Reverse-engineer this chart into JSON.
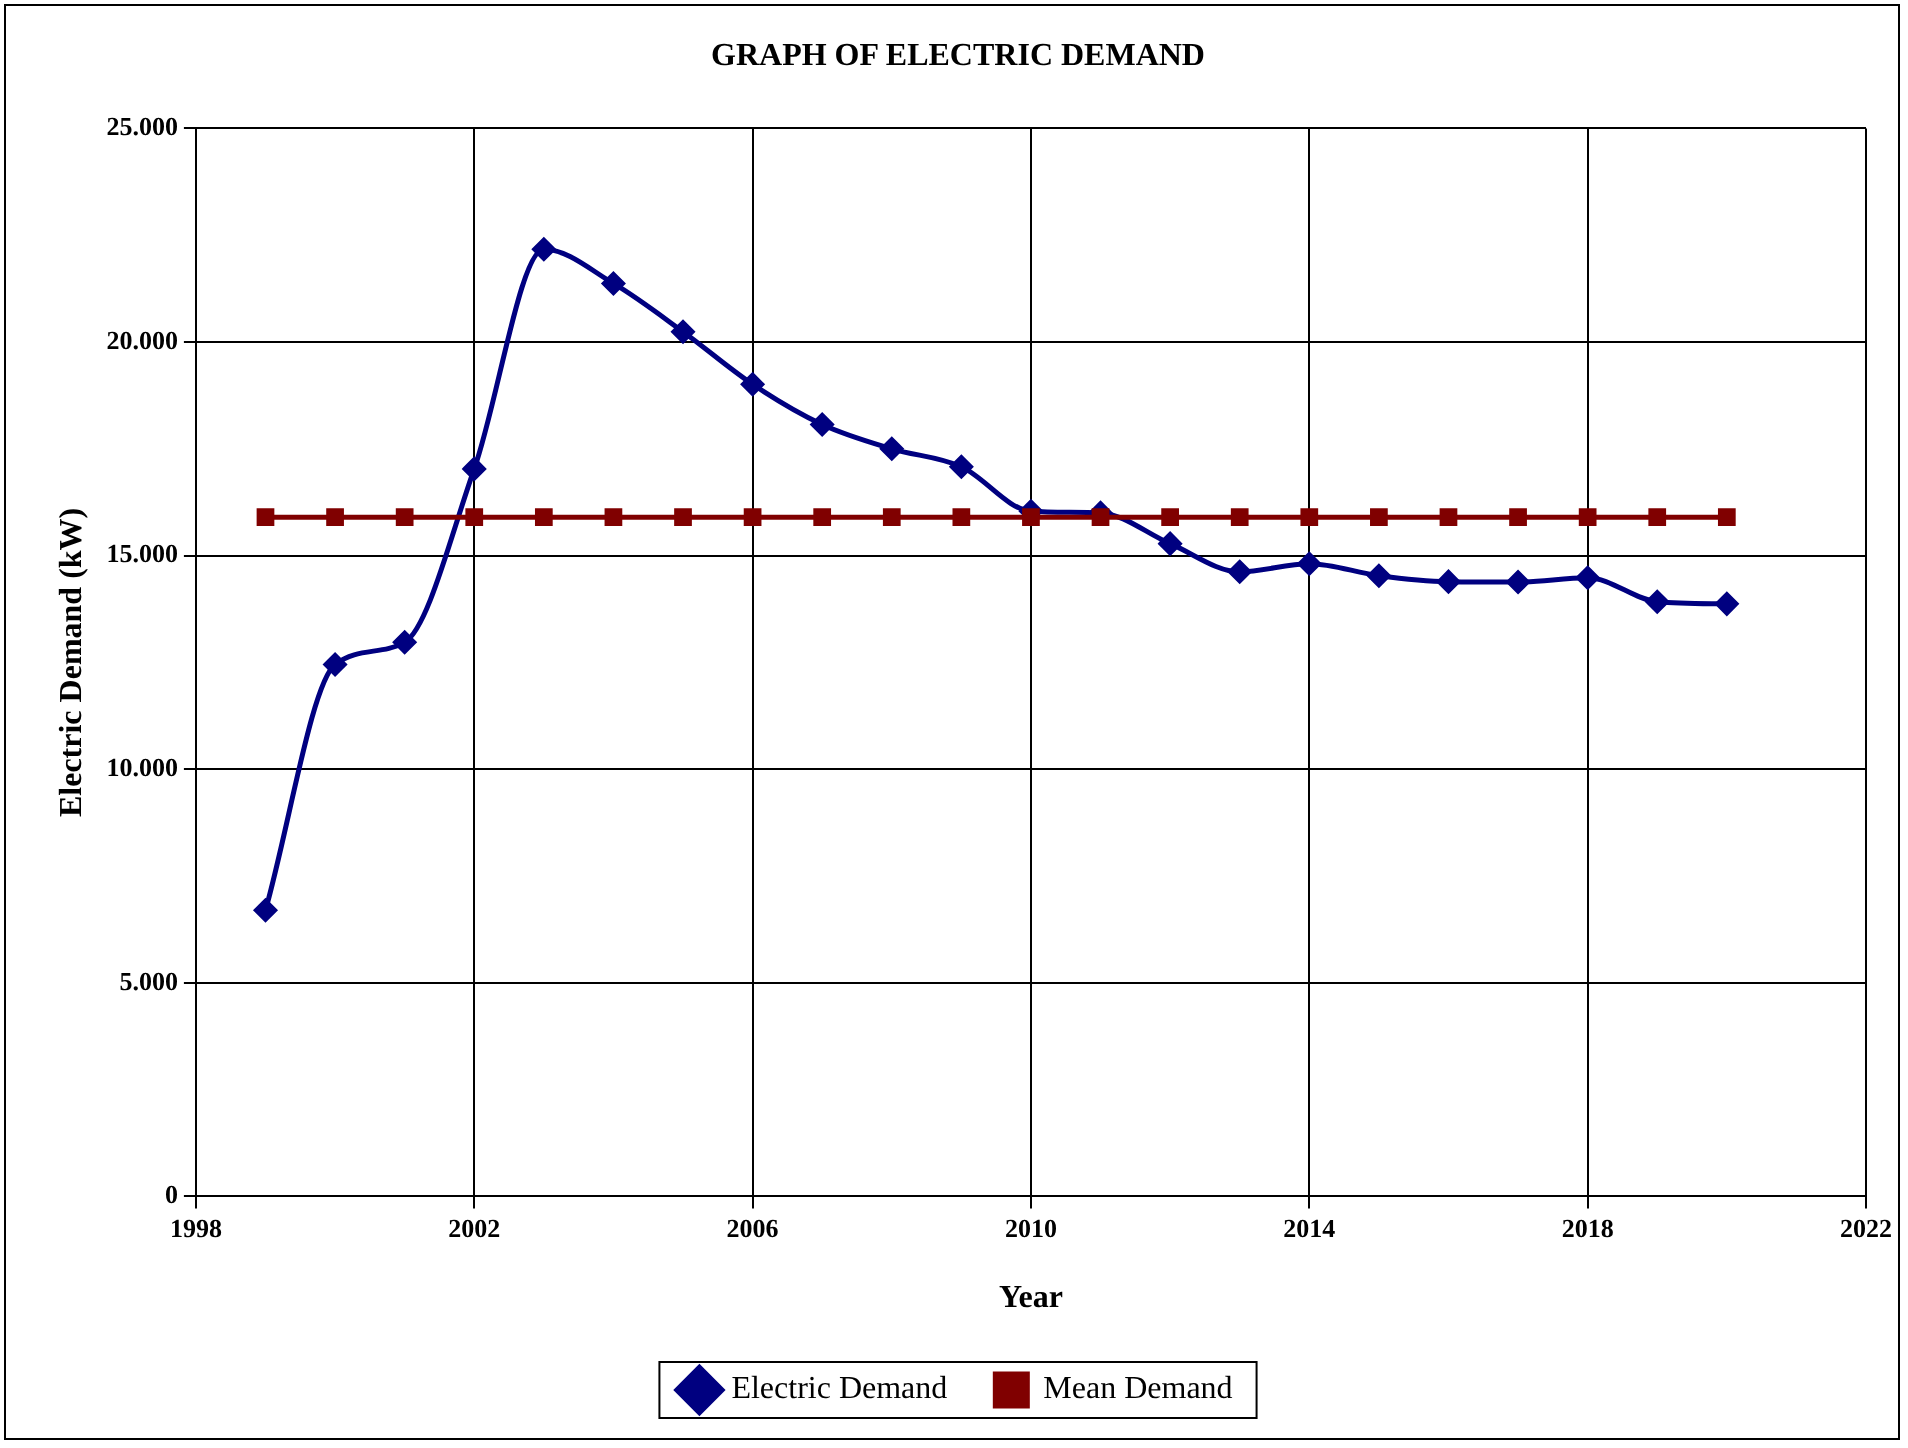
{
  "chart_data": {
    "type": "line",
    "title": "GRAPH OF ELECTRIC DEMAND",
    "xlabel": "Year",
    "ylabel": "Electric Demand (kW)",
    "x": [
      1999,
      2000,
      2001,
      2002,
      2003,
      2004,
      2005,
      2006,
      2007,
      2008,
      2009,
      2010,
      2011,
      2012,
      2013,
      2014,
      2015,
      2016,
      2017,
      2018,
      2019,
      2020
    ],
    "series": [
      {
        "name": "Electric Demand",
        "color": "#000080",
        "marker": "diamond",
        "values": [
          6700,
          12450,
          12970,
          17030,
          22170,
          21370,
          20240,
          19010,
          18070,
          17500,
          17080,
          16040,
          16000,
          15280,
          14620,
          14810,
          14530,
          14390,
          14380,
          14480,
          13920,
          13870
        ]
      },
      {
        "name": "Mean Demand",
        "color": "#800000",
        "marker": "square",
        "values": [
          15900,
          15900,
          15900,
          15900,
          15900,
          15900,
          15900,
          15900,
          15900,
          15900,
          15900,
          15900,
          15900,
          15900,
          15900,
          15900,
          15900,
          15900,
          15900,
          15900,
          15900,
          15900
        ]
      }
    ],
    "xlim": [
      1998,
      2022
    ],
    "xticks": [
      1998,
      2002,
      2006,
      2010,
      2014,
      2018,
      2022
    ],
    "ylim": [
      0,
      25000
    ],
    "yticks": [
      0,
      {
        "value": 5000,
        "label": "5.000"
      },
      {
        "value": 10000,
        "label": "10.000"
      },
      {
        "value": 15000,
        "label": "15.000"
      },
      {
        "value": 20000,
        "label": "20.000"
      },
      {
        "value": 25000,
        "label": "25.000"
      }
    ],
    "grid": true,
    "legend": "bottom",
    "line_style": "solid"
  }
}
